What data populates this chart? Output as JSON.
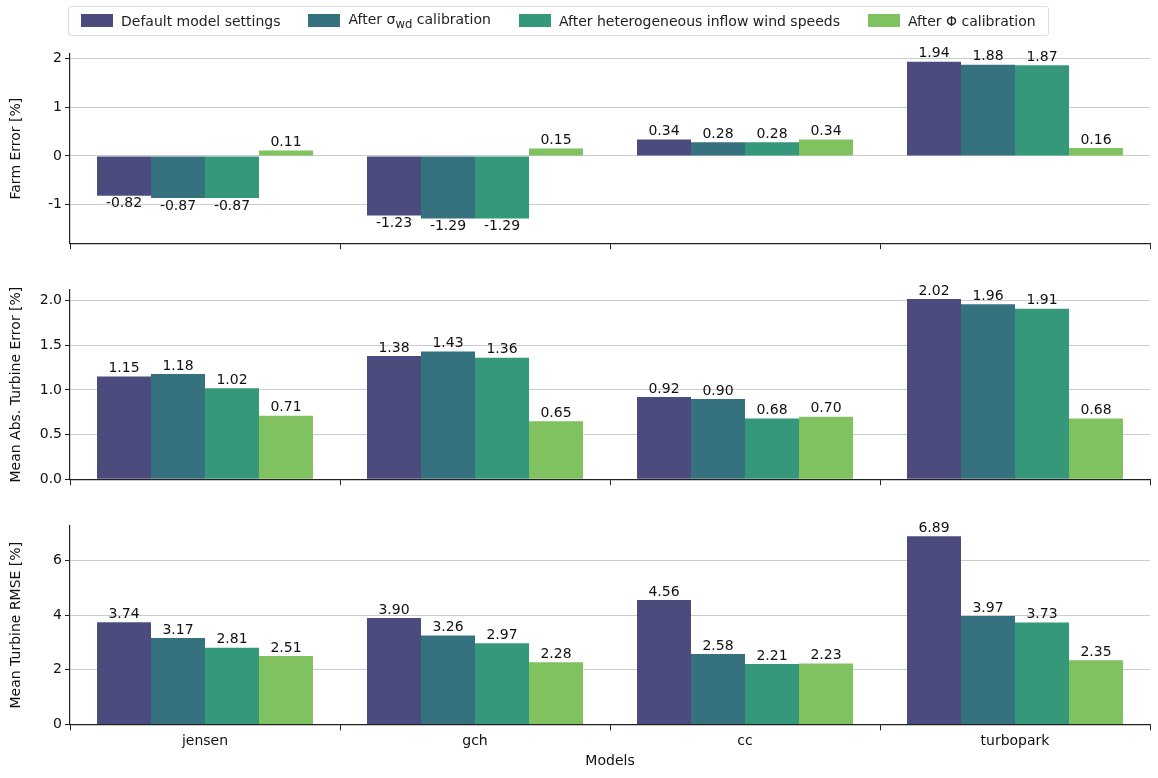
{
  "chart_data": [
    {
      "type": "bar",
      "categories": [
        null,
        null,
        null,
        null
      ],
      "ylabel": "Farm Error [%]",
      "ylim": [
        -1.8,
        2.1
      ],
      "yticks": [
        -1,
        0,
        1,
        2
      ],
      "grid": "y",
      "legend": "top",
      "tick_labels": "y",
      "series": [
        {
          "name": "Default model settings",
          "color": "#4b4c7d",
          "values": [
            -0.82,
            -1.23,
            0.34,
            1.94
          ],
          "value_labels": [
            "-0.82",
            "-1.23",
            "0.34",
            "1.94"
          ]
        },
        {
          "name": "After σ$_{wd}$ calibration",
          "color": "#36717f",
          "values": [
            -0.87,
            -1.29,
            0.28,
            1.88
          ],
          "value_labels": [
            "-0.87",
            "-1.29",
            "0.28",
            "1.88"
          ]
        },
        {
          "name": "After heterogeneous inflow wind speeds",
          "color": "#35987a",
          "values": [
            -0.87,
            -1.29,
            0.28,
            1.87
          ],
          "value_labels": [
            "-0.87",
            "-1.29",
            "0.28",
            "1.87"
          ]
        },
        {
          "name": "After Φ calibration",
          "color": "#80c160",
          "values": [
            0.11,
            0.15,
            0.34,
            0.16
          ],
          "value_labels": [
            "0.11",
            "0.15",
            "0.34",
            "0.16"
          ]
        }
      ]
    },
    {
      "type": "bar",
      "categories": [
        null,
        null,
        null,
        null
      ],
      "ylabel": "Mean Abs. Turbine Error [%]",
      "ylim": [
        0,
        2.12
      ],
      "yticks": [
        {
          "value": 0,
          "label": "0.0"
        },
        {
          "value": 0.5,
          "label": "0.5"
        },
        {
          "value": 1,
          "label": "1.0"
        },
        {
          "value": 1.5,
          "label": "1.5"
        },
        {
          "value": 2,
          "label": "2.0"
        }
      ],
      "grid": "y",
      "tick_labels": "y",
      "series": [
        {
          "color": "#4b4c7d",
          "values": [
            1.15,
            1.38,
            0.92,
            2.02
          ],
          "value_labels": [
            "1.15",
            "1.38",
            "0.92",
            "2.02"
          ]
        },
        {
          "color": "#36717f",
          "values": [
            1.18,
            1.43,
            0.9,
            1.96
          ],
          "value_labels": [
            "1.18",
            "1.43",
            "0.90",
            "1.96"
          ]
        },
        {
          "color": "#35987a",
          "values": [
            1.02,
            1.36,
            0.68,
            1.91
          ],
          "value_labels": [
            "1.02",
            "1.36",
            "0.68",
            "1.91"
          ]
        },
        {
          "color": "#80c160",
          "values": [
            0.71,
            0.65,
            0.7,
            0.68
          ],
          "value_labels": [
            "0.71",
            "0.65",
            "0.70",
            "0.68"
          ]
        }
      ]
    },
    {
      "type": "bar",
      "categories": [
        "jensen",
        "gch",
        "cc",
        "turbopark"
      ],
      "xlabel": "Models",
      "ylabel": "Mean Turbine RMSE [%]",
      "ylim": [
        0,
        7.27
      ],
      "yticks": [
        0,
        2,
        4,
        6
      ],
      "grid": "y",
      "series": [
        {
          "color": "#4b4c7d",
          "values": [
            3.74,
            3.9,
            4.56,
            6.89
          ],
          "value_labels": [
            "3.74",
            "3.90",
            "4.56",
            "6.89"
          ]
        },
        {
          "color": "#36717f",
          "values": [
            3.17,
            3.26,
            2.58,
            3.97
          ],
          "value_labels": [
            "3.17",
            "3.26",
            "2.58",
            "3.97"
          ]
        },
        {
          "color": "#35987a",
          "values": [
            2.81,
            2.97,
            2.21,
            3.73
          ],
          "value_labels": [
            "2.81",
            "2.97",
            "2.21",
            "3.73"
          ]
        },
        {
          "color": "#80c160",
          "values": [
            2.51,
            2.28,
            2.23,
            2.35
          ],
          "value_labels": [
            "2.51",
            "2.28",
            "2.23",
            "2.35"
          ]
        }
      ]
    }
  ]
}
